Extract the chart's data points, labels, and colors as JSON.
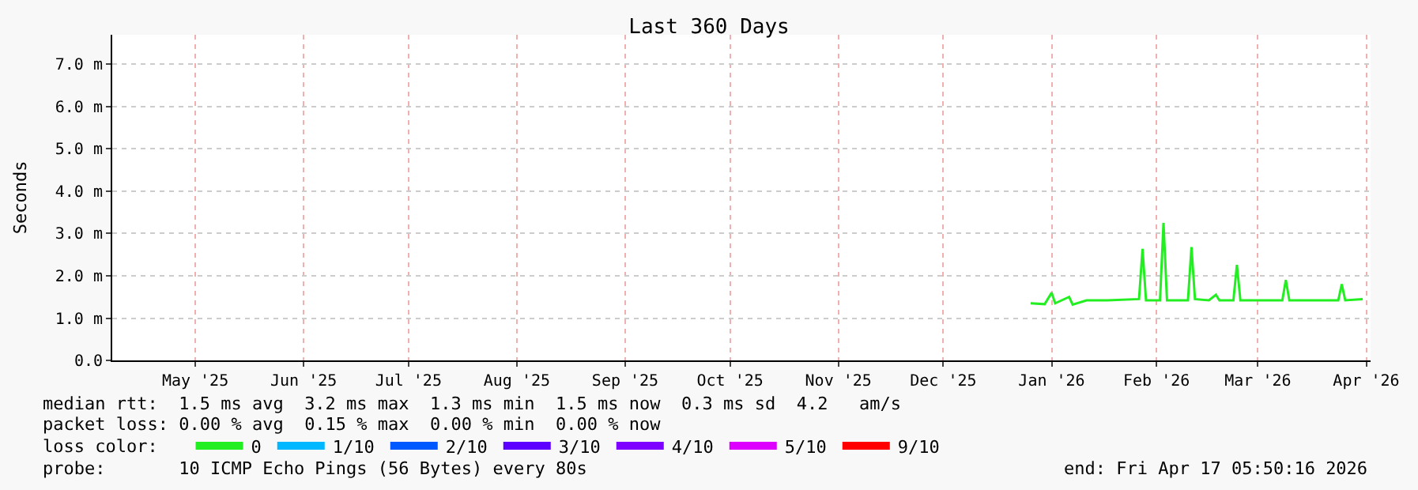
{
  "chart_data": {
    "type": "line",
    "title": "Last 360 Days",
    "ylabel": "Seconds",
    "x": [
      "2026-01-10",
      "2026-01-14",
      "2026-01-16",
      "2026-01-17",
      "2026-01-21",
      "2026-01-22",
      "2026-01-26",
      "2026-02-01",
      "2026-02-10",
      "2026-02-11",
      "2026-02-12",
      "2026-02-16",
      "2026-02-17",
      "2026-02-18",
      "2026-02-24",
      "2026-02-25",
      "2026-02-26",
      "2026-03-02",
      "2026-03-04",
      "2026-03-05",
      "2026-03-09",
      "2026-03-10",
      "2026-03-11",
      "2026-03-23",
      "2026-03-24",
      "2026-03-25",
      "2026-04-08",
      "2026-04-09",
      "2026-04-10",
      "2026-04-15"
    ],
    "series": [
      {
        "name": "0",
        "color": "#22ee22",
        "values": [
          1.35,
          1.33,
          1.6,
          1.35,
          1.5,
          1.32,
          1.42,
          1.42,
          1.45,
          2.64,
          1.42,
          1.42,
          3.25,
          1.42,
          1.42,
          2.68,
          1.45,
          1.42,
          1.55,
          1.42,
          1.42,
          2.26,
          1.42,
          1.42,
          1.9,
          1.42,
          1.42,
          1.8,
          1.42,
          1.45
        ]
      },
      {
        "name": "1/10",
        "color": "#00b8ff",
        "values": [
          null,
          null,
          null,
          null,
          null,
          null,
          null,
          null,
          null,
          null,
          null,
          null,
          null,
          null,
          null,
          null,
          null,
          null,
          null,
          null,
          null,
          null,
          null,
          null,
          null,
          null,
          null,
          null,
          null,
          null
        ]
      },
      {
        "name": "2/10",
        "color": "#0059ff",
        "values": [
          null,
          null,
          null,
          null,
          null,
          null,
          null,
          null,
          null,
          null,
          null,
          null,
          null,
          null,
          null,
          null,
          null,
          null,
          null,
          null,
          null,
          null,
          null,
          null,
          null,
          null,
          null,
          null,
          null,
          null
        ]
      },
      {
        "name": "3/10",
        "color": "#5e00ff",
        "values": [
          null,
          null,
          null,
          null,
          null,
          null,
          null,
          null,
          null,
          null,
          null,
          null,
          null,
          null,
          null,
          null,
          null,
          null,
          null,
          null,
          null,
          null,
          null,
          null,
          null,
          null,
          null,
          null,
          null,
          null
        ]
      },
      {
        "name": "4/10",
        "color": "#7e00ff",
        "values": [
          null,
          null,
          null,
          null,
          null,
          null,
          null,
          null,
          null,
          null,
          null,
          null,
          null,
          null,
          null,
          null,
          null,
          null,
          null,
          null,
          null,
          null,
          null,
          null,
          null,
          null,
          null,
          null,
          null,
          null
        ]
      },
      {
        "name": "5/10",
        "color": "#dd00ff",
        "values": [
          null,
          null,
          null,
          null,
          null,
          null,
          null,
          null,
          null,
          null,
          null,
          null,
          null,
          null,
          null,
          null,
          null,
          null,
          null,
          null,
          null,
          null,
          null,
          null,
          null,
          null,
          null,
          null,
          null,
          null
        ]
      },
      {
        "name": "9/10",
        "color": "#ff0000",
        "values": [
          null,
          null,
          null,
          null,
          null,
          null,
          null,
          null,
          null,
          null,
          null,
          null,
          null,
          null,
          null,
          null,
          null,
          null,
          null,
          null,
          null,
          null,
          null,
          null,
          null,
          null,
          null,
          null,
          null,
          null
        ]
      }
    ],
    "xlim": [
      "2025-04-22T05:50",
      "2026-04-17T05:50"
    ],
    "xticks": [
      {
        "value": "2025-05-16",
        "label": "May '25"
      },
      {
        "value": "2025-06-16",
        "label": "Jun '25"
      },
      {
        "value": "2025-07-16",
        "label": "Jul '25"
      },
      {
        "value": "2025-08-16",
        "label": "Aug '25"
      },
      {
        "value": "2025-09-16",
        "label": "Sep '25"
      },
      {
        "value": "2025-10-16",
        "label": "Oct '25"
      },
      {
        "value": "2025-11-16",
        "label": "Nov '25"
      },
      {
        "value": "2025-12-16",
        "label": "Dec '25"
      },
      {
        "value": "2026-01-16",
        "label": "Jan '26"
      },
      {
        "value": "2026-02-15",
        "label": "Feb '26"
      },
      {
        "value": "2026-03-16",
        "label": "Mar '26"
      },
      {
        "value": "2026-04-16",
        "label": "Apr '26"
      }
    ],
    "ylim": [
      0,
      7.7
    ],
    "yticks": [
      {
        "value": 0,
        "label": "0.0"
      },
      {
        "value": 1,
        "label": "1.0 m"
      },
      {
        "value": 2,
        "label": "2.0 m"
      },
      {
        "value": 3,
        "label": "3.0 m"
      },
      {
        "value": 4,
        "label": "4.0 m"
      },
      {
        "value": 5,
        "label": "5.0 m"
      },
      {
        "value": 6,
        "label": "6.0 m"
      },
      {
        "value": 7,
        "label": "7.0 m"
      }
    ],
    "grid": true,
    "legend": "bottom",
    "marker": "none",
    "line_style": "solid",
    "annotations": [
      "median rtt:  1.5 ms avg  3.2 ms max  1.3 ms min  1.5 ms now  0.3 ms sd  4.2   am/s",
      "packet loss: 0.00 % avg  0.15 % max  0.00 % min  0.00 % now",
      "loss color:",
      "probe:       10 ICMP Echo Pings (56 Bytes) every 80s",
      "end: Fri Apr 17 05:50:16 2026"
    ]
  }
}
